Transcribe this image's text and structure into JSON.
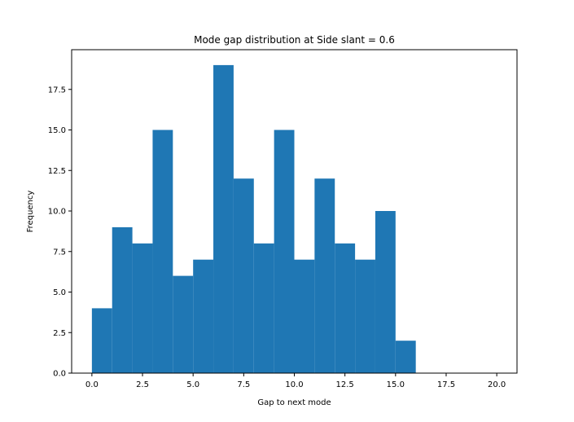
{
  "chart_data": {
    "type": "histogram",
    "title": "Mode gap distribution at Side slant = 0.6",
    "xlabel": "Gap to next mode",
    "ylabel": "Frequency",
    "bin_edges": [
      0,
      1,
      2,
      3,
      4,
      5,
      6,
      7,
      8,
      9,
      10,
      11,
      12,
      13,
      14,
      15,
      16,
      17,
      18,
      19,
      20
    ],
    "values": [
      4,
      9,
      8,
      15,
      6,
      7,
      19,
      12,
      8,
      15,
      7,
      12,
      8,
      7,
      10,
      2,
      0,
      0,
      0,
      0
    ],
    "xlim": [
      -1,
      21
    ],
    "ylim": [
      0,
      19.95
    ],
    "x_ticks": [
      0,
      2.5,
      5,
      7.5,
      10,
      12.5,
      15,
      17.5,
      20
    ],
    "x_tick_labels": [
      "0.0",
      "2.5",
      "5.0",
      "7.5",
      "10.0",
      "12.5",
      "15.0",
      "17.5",
      "20.0"
    ],
    "y_ticks": [
      0,
      2.5,
      5,
      7.5,
      10,
      12.5,
      15,
      17.5
    ],
    "y_tick_labels": [
      "0.0",
      "2.5",
      "5.0",
      "7.5",
      "10.0",
      "12.5",
      "15.0",
      "17.5"
    ],
    "bar_color": "#1f77b4",
    "grid": false
  }
}
